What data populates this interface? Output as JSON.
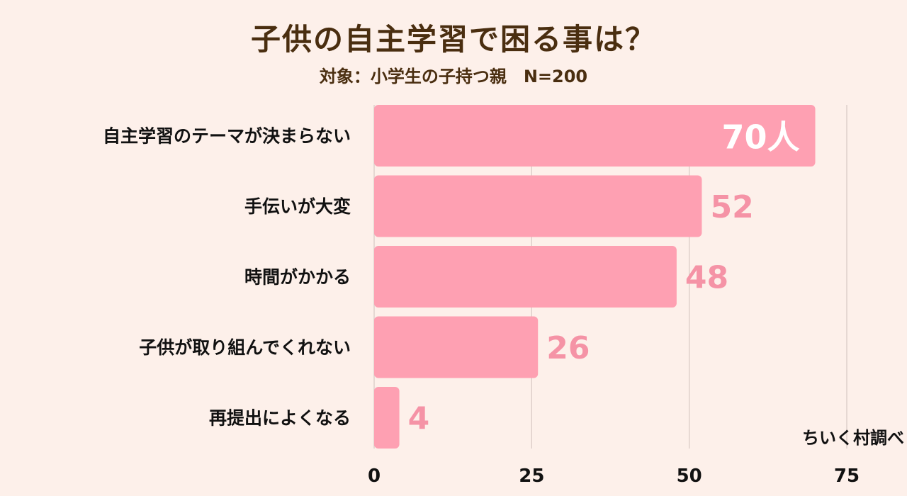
{
  "chart_data": {
    "type": "bar",
    "orientation": "horizontal",
    "title": "子供の自主学習で困る事は？",
    "subtitle": "対象：小学生の子持つ親　N=200",
    "source": "ちいく村調べ",
    "categories": [
      "自主学習のテーマが決まらない",
      "手伝いが大変",
      "時間がかかる",
      "子供が取り組んでくれない",
      "再提出によくなる"
    ],
    "values": [
      70,
      52,
      48,
      26,
      4
    ],
    "value_labels": [
      "70人",
      "52",
      "48",
      "26",
      "4"
    ],
    "xlim": [
      0,
      75
    ],
    "xticks": [
      0,
      25,
      50,
      75
    ],
    "xtick_labels": [
      "0",
      "25",
      "50",
      "75"
    ],
    "grid": true,
    "bar_color": "#fea0b2",
    "value_label_color": "#f593a6",
    "top_value_label_color": "#ffffff",
    "grid_color": "#d8c8c4"
  }
}
